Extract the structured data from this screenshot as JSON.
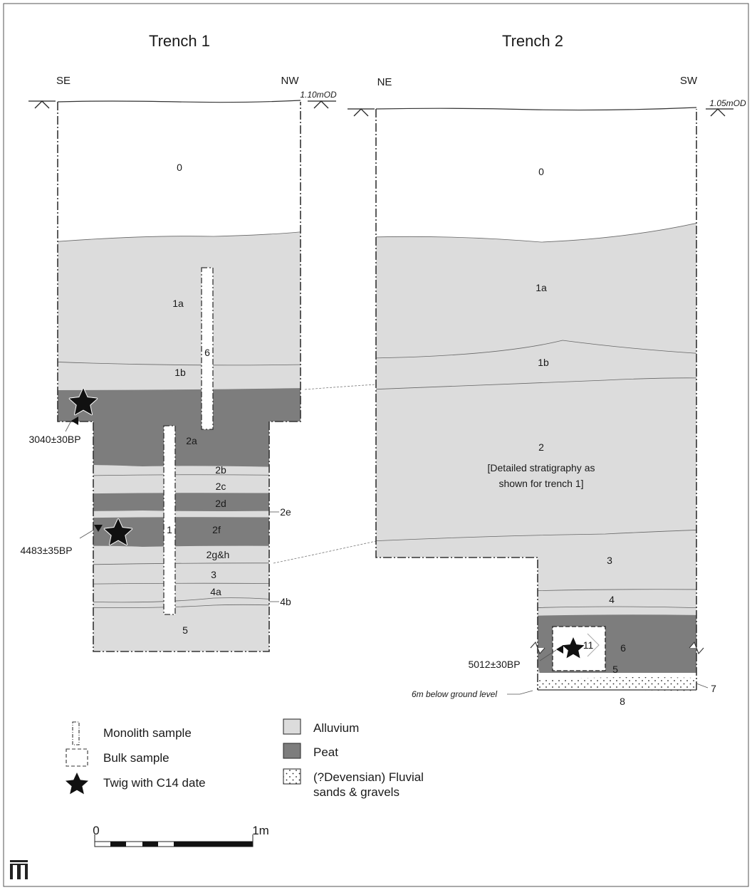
{
  "trench1": {
    "title": "Trench 1",
    "dir_left": "SE",
    "dir_right": "NW",
    "datum": "1.10mOD",
    "layers": {
      "l0": "0",
      "l1a": "1a",
      "l1b": "1b",
      "l2a": "2a",
      "l2b": "2b",
      "l2c": "2c",
      "l2d": "2d",
      "l2e": "2e",
      "l2f": "2f",
      "l2gh": "2g&h",
      "l3": "3",
      "l4a": "4a",
      "l4b": "4b",
      "l5": "5"
    },
    "monoliths": {
      "m6": "6",
      "m1": "1"
    },
    "dates": {
      "d1": "3040±30BP",
      "d2": "4483±35BP"
    }
  },
  "trench2": {
    "title": "Trench 2",
    "dir_left": "NE",
    "dir_right": "SW",
    "datum": "1.05mOD",
    "layers": {
      "l0": "0",
      "l1a": "1a",
      "l1b": "1b",
      "l2": "2",
      "note1": "[Detailed stratigraphy as",
      "note2": "shown for trench 1]",
      "l3": "3",
      "l4": "4",
      "l5": "5",
      "l6": "6",
      "l7": "7",
      "l8": "8"
    },
    "bulk_sample": "11",
    "date": "5012±30BP",
    "depth_note": "6m below ground level"
  },
  "legend": {
    "monolith": "Monolith sample",
    "bulk": "Bulk sample",
    "twig": "Twig with C14 date",
    "alluvium": "Alluvium",
    "peat": "Peat",
    "fluvial1": "(?Devensian) Fluvial",
    "fluvial2": "sands & gravels"
  },
  "scale": {
    "start": "0",
    "end": "1m"
  },
  "colors": {
    "alluvium": "#dcdcdc",
    "peat": "#7d7d7d",
    "frame": "#333333"
  }
}
